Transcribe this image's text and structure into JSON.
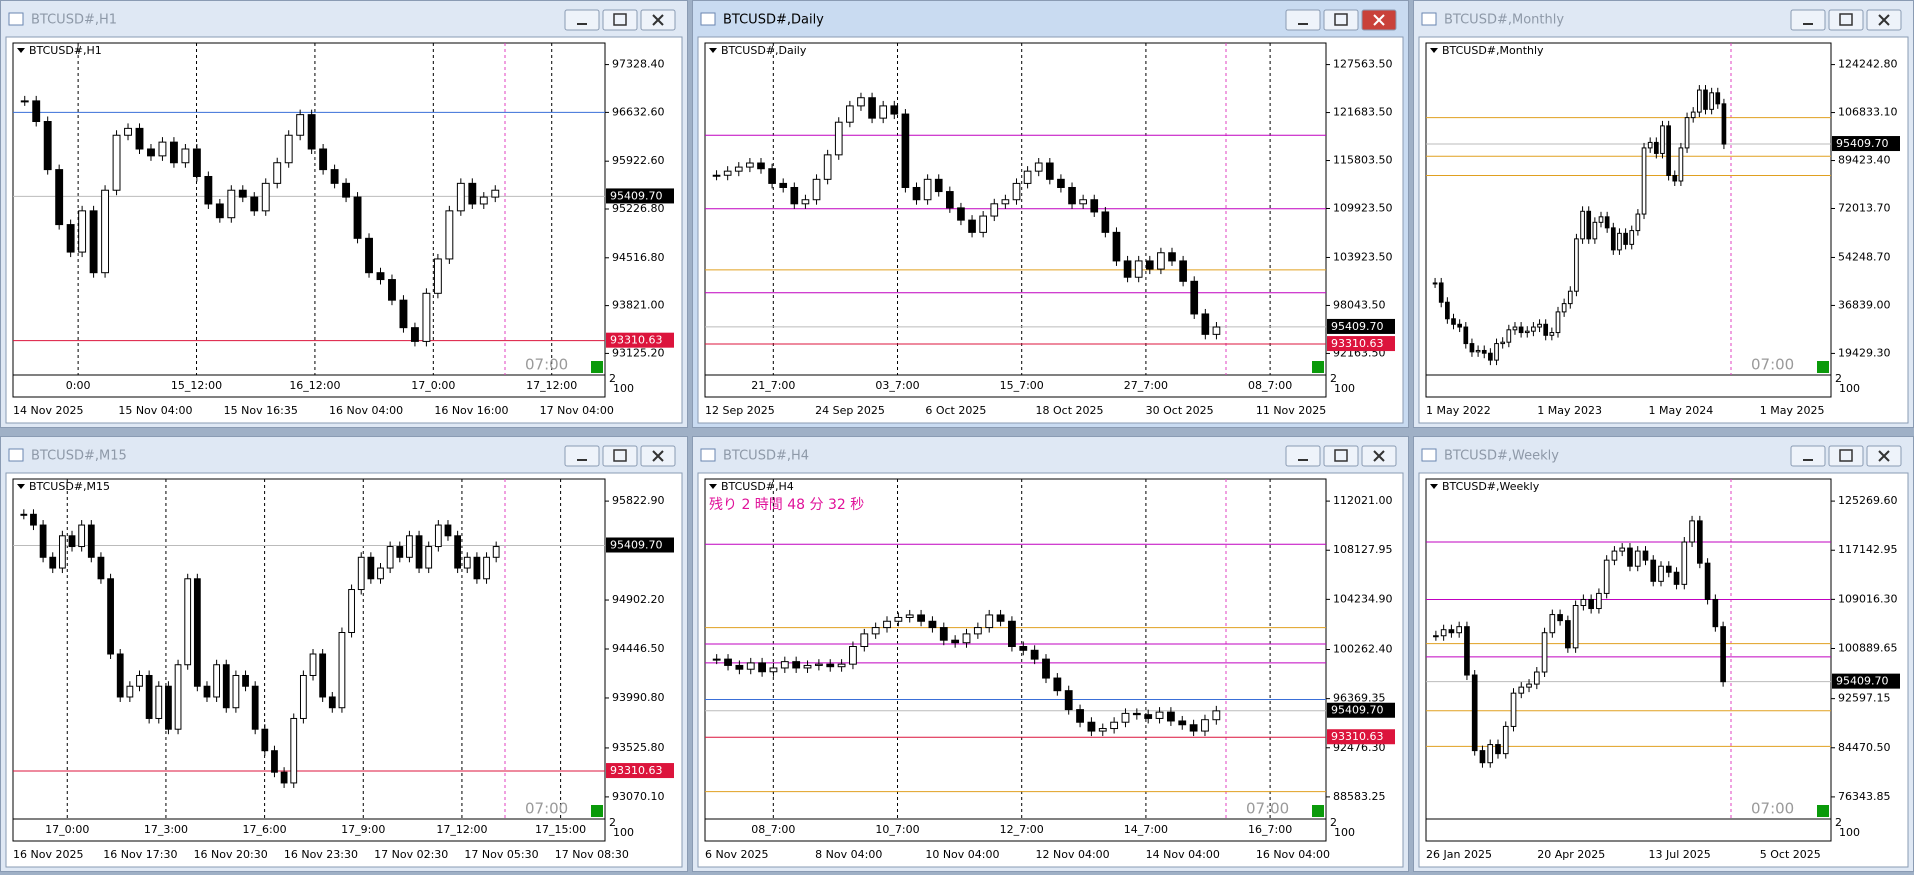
{
  "windows": [
    {
      "title": "BTCUSD#,H1",
      "label": "BTCUSD#,H1",
      "active": false,
      "yticks": [
        "97328.40",
        "96632.60",
        "95922.60",
        "95226.80",
        "94516.80",
        "93821.00",
        "93125.20"
      ],
      "price": "95409.70",
      "level": "93310.63",
      "time": "07:00",
      "indicator_ticks": [
        "2",
        "100"
      ],
      "sublabels": [
        "0:00",
        "15_12:00",
        "16_12:00",
        "17_0:00",
        "17_12:00"
      ],
      "xlabels": [
        "14 Nov 2025",
        "15 Nov 04:00",
        "15 Nov 16:35",
        "16 Nov 04:00",
        "16 Nov 16:00",
        "17 Nov 04:00"
      ],
      "levels": [
        {
          "value": 96632,
          "color": "#3a6fd8"
        }
      ],
      "closes": [
        96800,
        96500,
        95800,
        95000,
        94600,
        95200,
        94300,
        95500,
        96300,
        96400,
        96100,
        96000,
        96200,
        95900,
        96100,
        95700,
        95300,
        95100,
        95500,
        95400,
        95200,
        95600,
        95900,
        96300,
        96600,
        96100,
        95800,
        95600,
        95400,
        94800,
        94300,
        94200,
        93900,
        93500,
        93300,
        94000,
        94500,
        95200,
        95600,
        95300,
        95400,
        95500
      ]
    },
    {
      "title": "BTCUSD#,Daily",
      "label": "BTCUSD#,Daily",
      "active": true,
      "yticks": [
        "127563.50",
        "121683.50",
        "115803.50",
        "109923.50",
        "103923.50",
        "98043.50",
        "92163.50"
      ],
      "price": "95409.70",
      "level": "93310.63",
      "indicator_ticks": [
        "2",
        "100"
      ],
      "sublabels": [
        "21_7:00",
        "03_7:00",
        "15_7:00",
        "27_7:00",
        "08_7:00"
      ],
      "xlabels": [
        "12 Sep 2025",
        "24 Sep 2025",
        "6 Oct 2025",
        "18 Oct 2025",
        "30 Oct 2025",
        "11 Nov 2025"
      ],
      "levels": [
        {
          "value": 118900,
          "color": "#c000c0"
        },
        {
          "value": 109900,
          "color": "#c000c0"
        },
        {
          "value": 102400,
          "color": "#e0a020"
        },
        {
          "value": 99600,
          "color": "#c000c0"
        }
      ],
      "closes": [
        114000,
        114500,
        115000,
        115500,
        114800,
        113000,
        112500,
        110500,
        111000,
        113500,
        116500,
        120500,
        122500,
        123500,
        121000,
        122500,
        121500,
        112500,
        111000,
        113500,
        112000,
        110000,
        108500,
        107000,
        109000,
        110500,
        111000,
        113000,
        114500,
        115500,
        113500,
        112500,
        110500,
        111000,
        109500,
        107000,
        103500,
        101500,
        103500,
        102500,
        104500,
        103500,
        101000,
        97000,
        94500,
        95400
      ]
    },
    {
      "title": "BTCUSD#,Monthly",
      "label": "BTCUSD#,Monthly",
      "active": false,
      "yticks": [
        "124242.80",
        "106833.10",
        "89423.40",
        "72013.70",
        "54248.70",
        "36839.00",
        "19429.30"
      ],
      "price": "95409.70",
      "time": "07:00",
      "indicator_ticks": [
        "2",
        "100"
      ],
      "sublabels": [],
      "xlabels": [
        "1 May 2022",
        "1 May 2023",
        "1 May 2024",
        "1 May 2025"
      ],
      "levels": [
        {
          "value": 105000,
          "color": "#e0a020"
        },
        {
          "value": 91000,
          "color": "#e0a020"
        },
        {
          "value": 84000,
          "color": "#e0a020"
        }
      ],
      "closes": [
        45000,
        38000,
        32000,
        30000,
        29000,
        23000,
        20000,
        20500,
        19500,
        17000,
        23000,
        23500,
        28000,
        29000,
        27000,
        27500,
        29000,
        30000,
        26000,
        27000,
        34500,
        37500,
        42000,
        61000,
        71000,
        61000,
        67000,
        69000,
        65000,
        57000,
        63000,
        59000,
        64000,
        70000,
        94000,
        96000,
        92000,
        102000,
        84000,
        82000,
        94000,
        105000,
        107000,
        115000,
        108000,
        114000,
        110000,
        95400
      ]
    },
    {
      "title": "BTCUSD#,M15",
      "label": "BTCUSD#,M15",
      "active": false,
      "yticks": [
        "95822.90",
        "94902.20",
        "94446.50",
        "93990.80",
        "93525.80",
        "93070.10"
      ],
      "price": "95409.70",
      "level": "93310.63",
      "time": "07:00",
      "indicator_ticks": [
        "2",
        "100"
      ],
      "sublabels": [
        "17_0:00",
        "17_3:00",
        "17_6:00",
        "17_9:00",
        "17_12:00",
        "17_15:00"
      ],
      "xlabels": [
        "16 Nov 2025",
        "16 Nov 17:30",
        "16 Nov 20:30",
        "16 Nov 23:30",
        "17 Nov 02:30",
        "17 Nov 05:30",
        "17 Nov 08:30"
      ],
      "levels": [],
      "closes": [
        95700,
        95600,
        95300,
        95200,
        95500,
        95400,
        95600,
        95300,
        95100,
        94400,
        94000,
        94100,
        94200,
        93800,
        94100,
        93700,
        94300,
        95100,
        94100,
        94000,
        94300,
        93900,
        94200,
        94100,
        93700,
        93500,
        93300,
        93200,
        93800,
        94200,
        94400,
        94000,
        93900,
        94600,
        95000,
        95300,
        95100,
        95200,
        95400,
        95300,
        95500,
        95200,
        95400,
        95600,
        95500,
        95200,
        95300,
        95100,
        95300,
        95400
      ]
    },
    {
      "title": "BTCUSD#,H4",
      "label": "BTCUSD#,H4",
      "active": false,
      "note": "残り 2 時間 48 分 32 秒",
      "yticks": [
        "112021.00",
        "108127.95",
        "104234.90",
        "100262.40",
        "96369.35",
        "92476.30",
        "88583.25"
      ],
      "price": "95409.70",
      "level": "93310.63",
      "time": "07:00",
      "indicator_ticks": [
        "2",
        "100"
      ],
      "sublabels": [
        "08_7:00",
        "10_7:00",
        "12_7:00",
        "14_7:00",
        "16_7:00"
      ],
      "xlabels": [
        "6 Nov 2025",
        "8 Nov 04:00",
        "10 Nov 04:00",
        "12 Nov 04:00",
        "14 Nov 04:00",
        "16 Nov 04:00"
      ],
      "levels": [
        {
          "value": 108600,
          "color": "#c000c0"
        },
        {
          "value": 102000,
          "color": "#e0a020"
        },
        {
          "value": 100700,
          "color": "#c000c0"
        },
        {
          "value": 99200,
          "color": "#c000c0"
        },
        {
          "value": 96300,
          "color": "#3a6fd8"
        },
        {
          "value": 89000,
          "color": "#e0a020"
        }
      ],
      "closes": [
        99500,
        99000,
        98700,
        99200,
        98500,
        98800,
        99300,
        98800,
        99000,
        99100,
        98900,
        99100,
        100500,
        101500,
        102000,
        102500,
        102800,
        103000,
        102500,
        102000,
        101000,
        100800,
        101500,
        102000,
        103000,
        102500,
        100500,
        100200,
        99500,
        98000,
        97000,
        95500,
        94500,
        93800,
        94000,
        94500,
        95200,
        95100,
        94800,
        95300,
        94600,
        94300,
        93800,
        94700,
        95400
      ]
    },
    {
      "title": "BTCUSD#,Weekly",
      "label": "BTCUSD#,Weekly",
      "active": false,
      "yticks": [
        "125269.60",
        "117142.95",
        "109016.30",
        "100889.65",
        "92597.15",
        "84470.50",
        "76343.85"
      ],
      "price": "95409.70",
      "time": "07:00",
      "indicator_ticks": [
        "2",
        "100"
      ],
      "sublabels": [],
      "xlabels": [
        "26 Jan 2025",
        "20 Apr 2025",
        "13 Jul 2025",
        "5 Oct 2025"
      ],
      "levels": [
        {
          "value": 118500,
          "color": "#c000c0"
        },
        {
          "value": 109000,
          "color": "#c000c0"
        },
        {
          "value": 101700,
          "color": "#e0a020"
        },
        {
          "value": 99500,
          "color": "#c000c0"
        },
        {
          "value": 90600,
          "color": "#e0a020"
        },
        {
          "value": 84700,
          "color": "#e0a020"
        }
      ],
      "closes": [
        103000,
        104000,
        103500,
        104500,
        96500,
        84000,
        82000,
        85000,
        83500,
        88000,
        93500,
        94500,
        95000,
        97000,
        103500,
        106500,
        105500,
        101000,
        108000,
        109000,
        107500,
        110000,
        115500,
        117000,
        117500,
        114500,
        117000,
        115500,
        112000,
        114500,
        113500,
        111500,
        118500,
        122000,
        115000,
        109000,
        104500,
        95400
      ]
    }
  ]
}
